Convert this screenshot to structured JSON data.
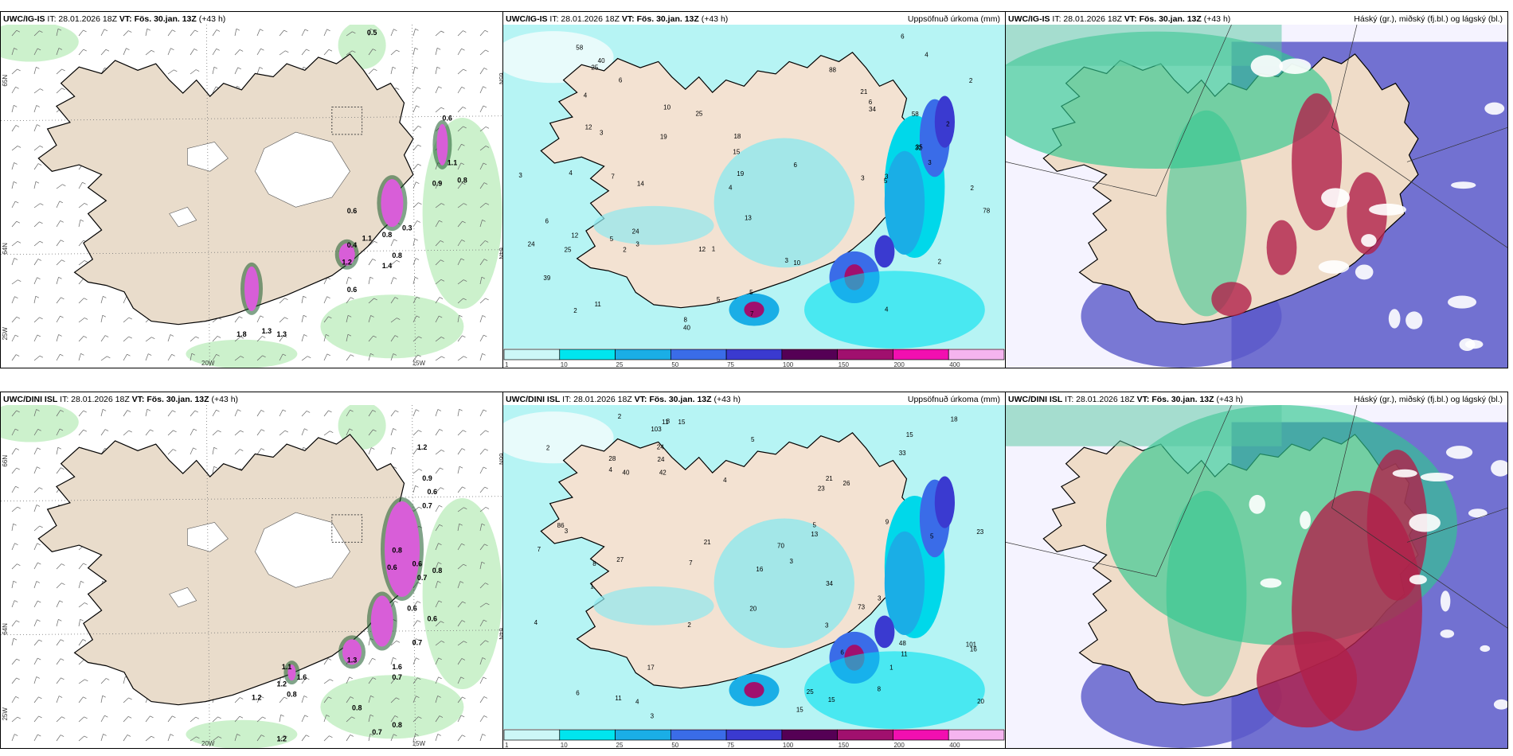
{
  "panels": [
    {
      "model": "UWC/IG-IS",
      "it": "IT: 28.01.2026 18Z",
      "vt": "VT: Fös. 30.jan. 13Z",
      "lead": "(+43 h)",
      "right": "",
      "values": [
        "0.5",
        "0.6",
        "0.9",
        "1.1",
        "0.8",
        "0.6",
        "1.2",
        "0.8",
        "0.4",
        "1.1",
        "0.8",
        "0.6",
        "1.8",
        "1.3",
        "1.3",
        "1.4",
        "0.3"
      ],
      "axes": {
        "bottom": [
          "20W",
          "15W"
        ],
        "left": [
          "65N",
          "64N",
          "25W"
        ],
        "right": [
          "65N",
          "64N"
        ]
      }
    },
    {
      "model": "UWC/IG-IS",
      "it": "IT: 28.01.2026 18Z",
      "vt": "VT: Fös. 30.jan. 13Z",
      "lead": "(+43 h)",
      "right": "Uppsöfnuð úrkoma (mm)",
      "values": [
        "3",
        "4",
        "3",
        "13",
        "5",
        "25",
        "4",
        "5",
        "1",
        "2",
        "2",
        "6",
        "8",
        "2",
        "2",
        "2",
        "10",
        "18",
        "4",
        "6",
        "3",
        "4",
        "24",
        "5",
        "12",
        "2",
        "5",
        "3",
        "4",
        "58",
        "35",
        "7",
        "40",
        "21",
        "12",
        "19",
        "25",
        "6",
        "24",
        "19",
        "88",
        "32",
        "78",
        "14",
        "25",
        "39",
        "40",
        "58",
        "3",
        "6",
        "3",
        "11",
        "10",
        "6",
        "3",
        "7",
        "12",
        "15",
        "34"
      ],
      "legend": [
        "1",
        "10",
        "25",
        "50",
        "75",
        "100",
        "150",
        "200",
        "400"
      ],
      "legend_colors": [
        "#ccf7f7",
        "#00e5ee",
        "#1aaee6",
        "#3a6ce8",
        "#3a3ad0",
        "#550055",
        "#a0106e",
        "#f20fb0",
        "#f5b4ef"
      ]
    },
    {
      "model": "UWC/IG-IS",
      "it": "IT: 28.01.2026 18Z",
      "vt": "VT: Fös. 30.jan. 13Z",
      "lead": "(+43 h)",
      "right": "Háský (gr.), miðský (fj.bl.) og lágský (bl.)"
    },
    {
      "model": "UWC/DINI ISL",
      "it": "IT: 28.01.2026 18Z",
      "vt": "VT: Fös. 30.jan. 13Z",
      "lead": "(+43 h)",
      "right": "",
      "values": [
        "1.2",
        "0.9",
        "0.6",
        "0.7",
        "0.8",
        "0.6",
        "0.6",
        "0.7",
        "0.8",
        "1.2",
        "0.7",
        "0.6",
        "1.3",
        "1.6",
        "0.7",
        "0.8",
        "1.1",
        "0.8",
        "1.2",
        "0.7",
        "1.2",
        "0.8",
        "1.6",
        "0.6"
      ],
      "axes": {
        "bottom": [
          "20W",
          "15W"
        ],
        "left": [
          "66N",
          "64N",
          "25W"
        ],
        "right": [
          "66N",
          "64N"
        ]
      }
    },
    {
      "model": "UWC/DINI ISL",
      "it": "IT: 28.01.2026 18Z",
      "vt": "VT: Fös. 30.jan. 13Z",
      "lead": "(+43 h)",
      "right": "Uppsöfnuð úrkoma (mm)",
      "values": [
        "4",
        "8",
        "9",
        "6",
        "4",
        "3",
        "11",
        "3",
        "5",
        "1",
        "2",
        "4",
        "7",
        "3",
        "2",
        "48",
        "15",
        "20",
        "1",
        "5",
        "11",
        "8",
        "4",
        "26",
        "73",
        "103",
        "17",
        "15",
        "11",
        "24",
        "16",
        "21",
        "86",
        "70",
        "15",
        "20",
        "33",
        "34",
        "42",
        "25",
        "23",
        "21",
        "24",
        "101",
        "15",
        "28",
        "18",
        "40",
        "23",
        "27",
        "13",
        "16",
        "8",
        "6",
        "5",
        "3",
        "2",
        "3",
        "7"
      ],
      "legend": [
        "1",
        "10",
        "25",
        "50",
        "75",
        "100",
        "150",
        "200",
        "400"
      ],
      "legend_colors": [
        "#ccf7f7",
        "#00e5ee",
        "#1aaee6",
        "#3a6ce8",
        "#3a3ad0",
        "#550055",
        "#a0106e",
        "#f20fb0",
        "#f5b4ef"
      ]
    },
    {
      "model": "UWC/DINI ISL",
      "it": "IT: 28.01.2026 18Z",
      "vt": "VT: Fös. 30.jan. 13Z",
      "lead": "(+43 h)",
      "right": "Háský (gr.), miðský (fj.bl.) og lágský (bl.)"
    }
  ],
  "colors": {
    "land": "#e9dccb",
    "ice": "#ffffff",
    "wind_sea": "#ffffff",
    "precip_light": "#a8f3f3",
    "snow_pink": "#d85ed8",
    "rain_green": "#b8f0b8",
    "cloud_high": "#2fc78f",
    "cloud_mid": "#c02a4f",
    "cloud_low": "#5a59c9"
  }
}
